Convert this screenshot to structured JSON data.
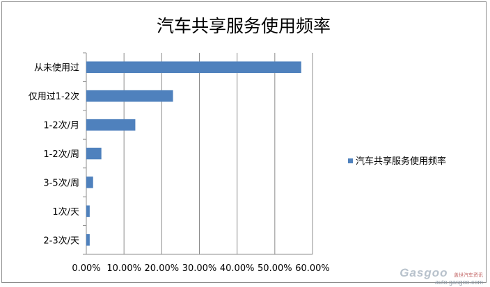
{
  "chart_data": {
    "type": "bar",
    "orientation": "horizontal",
    "title": "汽车共享服务使用频率",
    "categories": [
      "从未使用过",
      "仅用过1-2次",
      "1-2次/月",
      "1-2次/周",
      "3-5次/周",
      "1次/天",
      "2-3次/天"
    ],
    "series": [
      {
        "name": "汽车共享服务使用频率",
        "values": [
          57.0,
          23.0,
          13.0,
          4.0,
          1.8,
          0.9,
          0.9
        ],
        "color": "#4f81bd"
      }
    ],
    "xlim": [
      0,
      60
    ],
    "xticks": [
      0,
      10,
      20,
      30,
      40,
      50,
      60
    ],
    "xtick_labels": [
      "0.00%",
      "10.00%",
      "20.00%",
      "30.00%",
      "40.00%",
      "50.00%",
      "60.00%"
    ],
    "grid": "vertical",
    "legend_position": "right"
  },
  "watermark": {
    "logo": "Gasgoo",
    "chinese": "盖世汽车资讯",
    "url": "auto.gasgoo.com"
  }
}
